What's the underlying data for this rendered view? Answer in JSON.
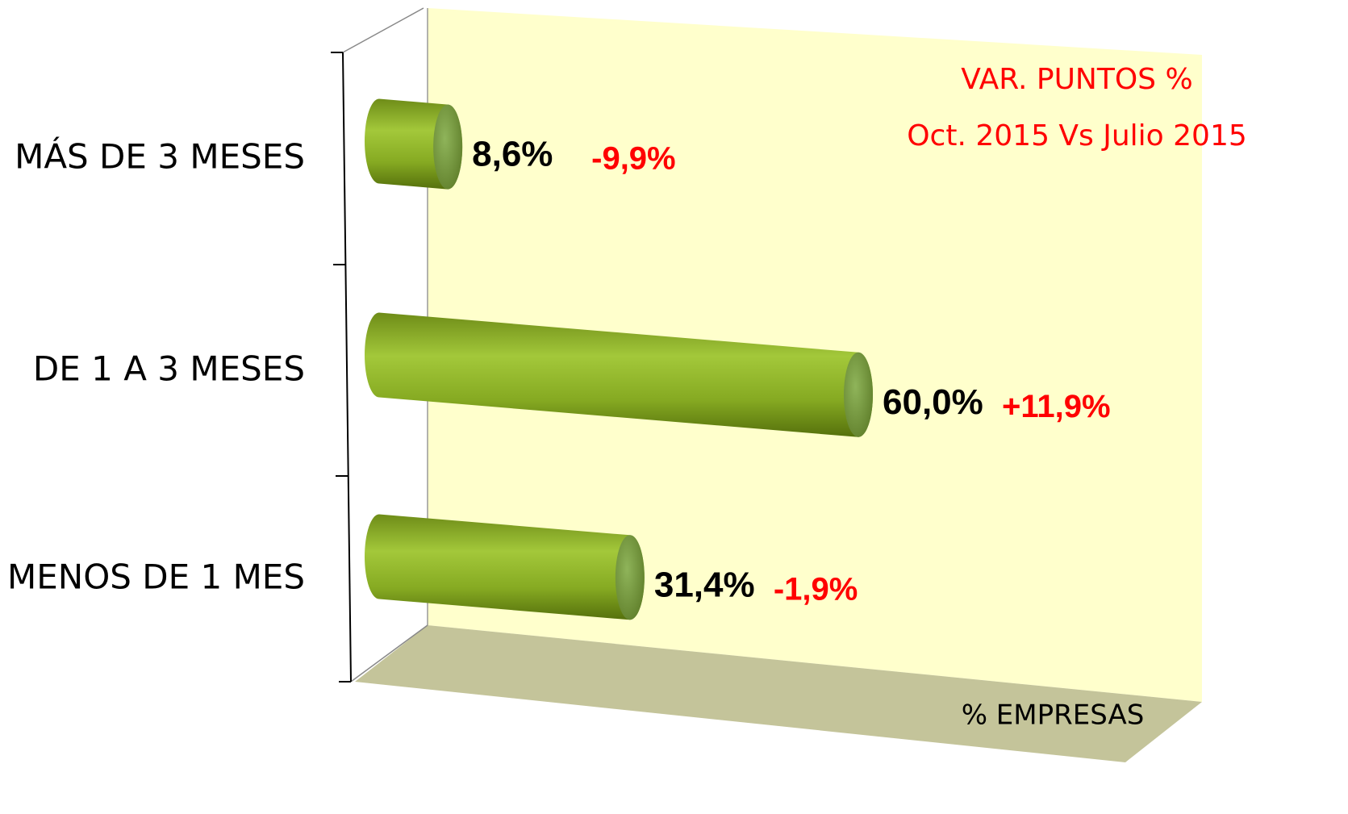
{
  "chart_data": {
    "type": "bar",
    "orientation": "horizontal",
    "categories": [
      "MÁS DE 3 MESES",
      "DE 1 A 3 MESES",
      "MENOS DE 1 MES"
    ],
    "values": [
      8.6,
      60.0,
      31.4
    ],
    "value_labels": [
      "8,6%",
      "60,0%",
      "31,4%"
    ],
    "change_labels": [
      "-9,9%",
      "+11,9%",
      "-1,9%"
    ],
    "annotations": [
      "VAR. PUNTOS %",
      "Oct. 2015 Vs Julio 2015"
    ],
    "x_label": "% EMPRESAS",
    "xlim": [
      0,
      100
    ],
    "color": "#8cb42a"
  }
}
